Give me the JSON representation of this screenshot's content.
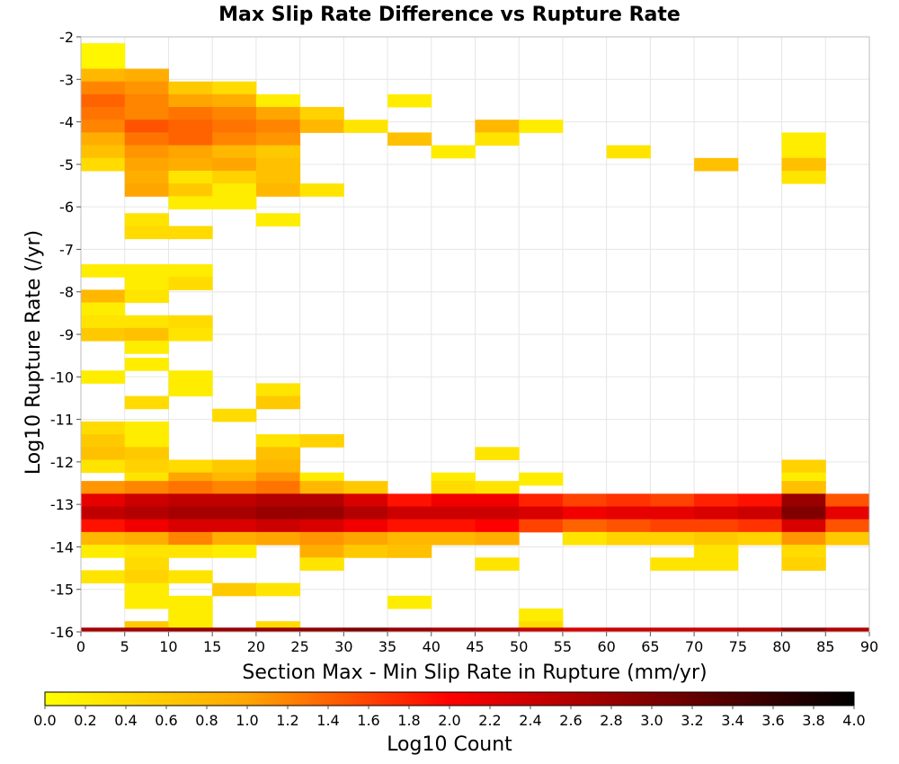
{
  "chart_data": {
    "type": "heatmap",
    "title": "Max Slip Rate Difference vs Rupture Rate",
    "xlabel": "Section Max - Min Slip Rate in Rupture (mm/yr)",
    "ylabel": "Log10 Rupture Rate (/yr)",
    "xlim": [
      0,
      90
    ],
    "ylim": [
      -16,
      -2
    ],
    "x_ticks": [
      0,
      5,
      10,
      15,
      20,
      25,
      30,
      35,
      40,
      45,
      50,
      55,
      60,
      65,
      70,
      75,
      80,
      85,
      90
    ],
    "y_ticks": [
      -2,
      -3,
      -4,
      -5,
      -6,
      -7,
      -8,
      -9,
      -10,
      -11,
      -12,
      -13,
      -14,
      -15,
      -16
    ],
    "grid": true,
    "colorbar": {
      "label": "Log10 Count",
      "range": [
        0.0,
        4.0
      ],
      "ticks": [
        "0.0",
        "0.2",
        "0.4",
        "0.6",
        "0.8",
        "1.0",
        "1.2",
        "1.4",
        "1.6",
        "1.8",
        "2.0",
        "2.2",
        "2.4",
        "2.6",
        "2.8",
        "3.0",
        "3.2",
        "3.4",
        "3.6",
        "3.8",
        "4.0"
      ],
      "placement": "bottom",
      "colors": [
        "#ffff00",
        "#ffa500",
        "#ff0000",
        "#800000",
        "#000000"
      ]
    },
    "x_bin_width": 5,
    "y_bin_height": 0.3,
    "cells": [
      {
        "x": 2.5,
        "y": -2.3,
        "v": 0.1
      },
      {
        "x": 2.5,
        "y": -2.6,
        "v": 0.1
      },
      {
        "x": 2.5,
        "y": -2.9,
        "v": 0.8
      },
      {
        "x": 7.5,
        "y": -2.9,
        "v": 0.9
      },
      {
        "x": 2.5,
        "y": -3.2,
        "v": 1.2
      },
      {
        "x": 7.5,
        "y": -3.2,
        "v": 1.1
      },
      {
        "x": 12.5,
        "y": -3.2,
        "v": 0.6
      },
      {
        "x": 17.5,
        "y": -3.2,
        "v": 0.4
      },
      {
        "x": 2.5,
        "y": -3.5,
        "v": 1.4
      },
      {
        "x": 7.5,
        "y": -3.5,
        "v": 1.2
      },
      {
        "x": 12.5,
        "y": -3.5,
        "v": 1.0
      },
      {
        "x": 17.5,
        "y": -3.5,
        "v": 0.9
      },
      {
        "x": 22.5,
        "y": -3.5,
        "v": 0.2
      },
      {
        "x": 37.5,
        "y": -3.5,
        "v": 0.2
      },
      {
        "x": 2.5,
        "y": -3.8,
        "v": 1.3
      },
      {
        "x": 7.5,
        "y": -3.8,
        "v": 1.2
      },
      {
        "x": 12.5,
        "y": -3.8,
        "v": 1.3
      },
      {
        "x": 17.5,
        "y": -3.8,
        "v": 1.2
      },
      {
        "x": 22.5,
        "y": -3.8,
        "v": 1.0
      },
      {
        "x": 27.5,
        "y": -3.8,
        "v": 0.5
      },
      {
        "x": 2.5,
        "y": -4.1,
        "v": 1.2
      },
      {
        "x": 7.5,
        "y": -4.1,
        "v": 1.5
      },
      {
        "x": 12.5,
        "y": -4.1,
        "v": 1.4
      },
      {
        "x": 17.5,
        "y": -4.1,
        "v": 1.3
      },
      {
        "x": 22.5,
        "y": -4.1,
        "v": 1.2
      },
      {
        "x": 27.5,
        "y": -4.1,
        "v": 0.8
      },
      {
        "x": 32.5,
        "y": -4.1,
        "v": 0.3
      },
      {
        "x": 47.5,
        "y": -4.1,
        "v": 0.8
      },
      {
        "x": 52.5,
        "y": -4.1,
        "v": 0.2
      },
      {
        "x": 2.5,
        "y": -4.4,
        "v": 0.9
      },
      {
        "x": 7.5,
        "y": -4.4,
        "v": 1.3
      },
      {
        "x": 12.5,
        "y": -4.4,
        "v": 1.4
      },
      {
        "x": 17.5,
        "y": -4.4,
        "v": 1.2
      },
      {
        "x": 22.5,
        "y": -4.4,
        "v": 1.1
      },
      {
        "x": 37.5,
        "y": -4.4,
        "v": 0.7
      },
      {
        "x": 47.5,
        "y": -4.4,
        "v": 0.3
      },
      {
        "x": 82.5,
        "y": -4.4,
        "v": 0.2
      },
      {
        "x": 2.5,
        "y": -4.7,
        "v": 0.7
      },
      {
        "x": 7.5,
        "y": -4.7,
        "v": 1.1
      },
      {
        "x": 12.5,
        "y": -4.7,
        "v": 1.0
      },
      {
        "x": 17.5,
        "y": -4.7,
        "v": 0.8
      },
      {
        "x": 22.5,
        "y": -4.7,
        "v": 0.6
      },
      {
        "x": 42.5,
        "y": -4.7,
        "v": 0.2
      },
      {
        "x": 62.5,
        "y": -4.7,
        "v": 0.3
      },
      {
        "x": 82.5,
        "y": -4.7,
        "v": 0.2
      },
      {
        "x": 2.5,
        "y": -5.0,
        "v": 0.4
      },
      {
        "x": 7.5,
        "y": -5.0,
        "v": 1.0
      },
      {
        "x": 12.5,
        "y": -5.0,
        "v": 0.9
      },
      {
        "x": 17.5,
        "y": -5.0,
        "v": 1.0
      },
      {
        "x": 22.5,
        "y": -5.0,
        "v": 0.7
      },
      {
        "x": 72.5,
        "y": -5.0,
        "v": 0.7
      },
      {
        "x": 82.5,
        "y": -5.0,
        "v": 0.7
      },
      {
        "x": 7.5,
        "y": -5.3,
        "v": 0.9
      },
      {
        "x": 12.5,
        "y": -5.3,
        "v": 0.3
      },
      {
        "x": 17.5,
        "y": -5.3,
        "v": 0.5
      },
      {
        "x": 22.5,
        "y": -5.3,
        "v": 0.7
      },
      {
        "x": 82.5,
        "y": -5.3,
        "v": 0.3
      },
      {
        "x": 7.5,
        "y": -5.6,
        "v": 1.0
      },
      {
        "x": 12.5,
        "y": -5.6,
        "v": 0.6
      },
      {
        "x": 17.5,
        "y": -5.6,
        "v": 0.2
      },
      {
        "x": 22.5,
        "y": -5.6,
        "v": 0.8
      },
      {
        "x": 27.5,
        "y": -5.6,
        "v": 0.3
      },
      {
        "x": 12.5,
        "y": -5.9,
        "v": 0.2
      },
      {
        "x": 17.5,
        "y": -5.9,
        "v": 0.2
      },
      {
        "x": 7.5,
        "y": -6.3,
        "v": 0.3
      },
      {
        "x": 22.5,
        "y": -6.3,
        "v": 0.2
      },
      {
        "x": 7.5,
        "y": -6.6,
        "v": 0.4
      },
      {
        "x": 12.5,
        "y": -6.6,
        "v": 0.4
      },
      {
        "x": 2.5,
        "y": -7.5,
        "v": 0.2
      },
      {
        "x": 7.5,
        "y": -7.5,
        "v": 0.2
      },
      {
        "x": 12.5,
        "y": -7.5,
        "v": 0.2
      },
      {
        "x": 7.5,
        "y": -7.8,
        "v": 0.2
      },
      {
        "x": 12.5,
        "y": -7.8,
        "v": 0.4
      },
      {
        "x": 2.5,
        "y": -8.1,
        "v": 0.8
      },
      {
        "x": 7.5,
        "y": -8.1,
        "v": 0.3
      },
      {
        "x": 2.5,
        "y": -8.4,
        "v": 0.2
      },
      {
        "x": 2.5,
        "y": -8.7,
        "v": 0.3
      },
      {
        "x": 7.5,
        "y": -8.7,
        "v": 0.3
      },
      {
        "x": 12.5,
        "y": -8.7,
        "v": 0.4
      },
      {
        "x": 2.5,
        "y": -9.0,
        "v": 0.6
      },
      {
        "x": 7.5,
        "y": -9.0,
        "v": 0.7
      },
      {
        "x": 12.5,
        "y": -9.0,
        "v": 0.3
      },
      {
        "x": 7.5,
        "y": -9.3,
        "v": 0.2
      },
      {
        "x": 7.5,
        "y": -9.7,
        "v": 0.2
      },
      {
        "x": 2.5,
        "y": -10.0,
        "v": 0.2
      },
      {
        "x": 12.5,
        "y": -10.0,
        "v": 0.2
      },
      {
        "x": 12.5,
        "y": -10.3,
        "v": 0.2
      },
      {
        "x": 22.5,
        "y": -10.3,
        "v": 0.3
      },
      {
        "x": 7.5,
        "y": -10.6,
        "v": 0.4
      },
      {
        "x": 22.5,
        "y": -10.6,
        "v": 0.6
      },
      {
        "x": 17.5,
        "y": -10.9,
        "v": 0.4
      },
      {
        "x": 2.5,
        "y": -11.2,
        "v": 0.4
      },
      {
        "x": 7.5,
        "y": -11.2,
        "v": 0.2
      },
      {
        "x": 2.5,
        "y": -11.5,
        "v": 0.6
      },
      {
        "x": 7.5,
        "y": -11.5,
        "v": 0.2
      },
      {
        "x": 22.5,
        "y": -11.5,
        "v": 0.3
      },
      {
        "x": 27.5,
        "y": -11.5,
        "v": 0.5
      },
      {
        "x": 2.5,
        "y": -11.8,
        "v": 0.7
      },
      {
        "x": 7.5,
        "y": -11.8,
        "v": 0.6
      },
      {
        "x": 22.5,
        "y": -11.8,
        "v": 0.7
      },
      {
        "x": 47.5,
        "y": -11.8,
        "v": 0.3
      },
      {
        "x": 2.5,
        "y": -12.1,
        "v": 0.3
      },
      {
        "x": 7.5,
        "y": -12.1,
        "v": 0.5
      },
      {
        "x": 12.5,
        "y": -12.1,
        "v": 0.4
      },
      {
        "x": 17.5,
        "y": -12.1,
        "v": 0.6
      },
      {
        "x": 22.5,
        "y": -12.1,
        "v": 0.8
      },
      {
        "x": 82.5,
        "y": -12.1,
        "v": 0.5
      },
      {
        "x": 7.5,
        "y": -12.4,
        "v": 0.3
      },
      {
        "x": 12.5,
        "y": -12.4,
        "v": 1.0
      },
      {
        "x": 17.5,
        "y": -12.4,
        "v": 0.8
      },
      {
        "x": 22.5,
        "y": -12.4,
        "v": 1.1
      },
      {
        "x": 27.5,
        "y": -12.4,
        "v": 0.2
      },
      {
        "x": 42.5,
        "y": -12.4,
        "v": 0.2
      },
      {
        "x": 52.5,
        "y": -12.4,
        "v": 0.2
      },
      {
        "x": 82.5,
        "y": -12.4,
        "v": 0.2
      },
      {
        "x": 2.5,
        "y": -12.6,
        "v": 1.1
      },
      {
        "x": 7.5,
        "y": -12.6,
        "v": 1.2
      },
      {
        "x": 12.5,
        "y": -12.6,
        "v": 1.3
      },
      {
        "x": 17.5,
        "y": -12.6,
        "v": 1.2
      },
      {
        "x": 22.5,
        "y": -12.6,
        "v": 1.3
      },
      {
        "x": 27.5,
        "y": -12.6,
        "v": 0.8
      },
      {
        "x": 32.5,
        "y": -12.6,
        "v": 0.6
      },
      {
        "x": 42.5,
        "y": -12.6,
        "v": 0.4
      },
      {
        "x": 47.5,
        "y": -12.6,
        "v": 0.3
      },
      {
        "x": 82.5,
        "y": -12.6,
        "v": 0.7
      },
      {
        "x": 2.5,
        "y": -12.9,
        "v": 2.2
      },
      {
        "x": 7.5,
        "y": -12.9,
        "v": 2.4
      },
      {
        "x": 12.5,
        "y": -12.9,
        "v": 2.5
      },
      {
        "x": 17.5,
        "y": -12.9,
        "v": 2.5
      },
      {
        "x": 22.5,
        "y": -12.9,
        "v": 2.6
      },
      {
        "x": 27.5,
        "y": -12.9,
        "v": 2.6
      },
      {
        "x": 32.5,
        "y": -12.9,
        "v": 2.3
      },
      {
        "x": 37.5,
        "y": -12.9,
        "v": 1.9
      },
      {
        "x": 42.5,
        "y": -12.9,
        "v": 2.1
      },
      {
        "x": 47.5,
        "y": -12.9,
        "v": 2.1
      },
      {
        "x": 52.5,
        "y": -12.9,
        "v": 1.8
      },
      {
        "x": 57.5,
        "y": -12.9,
        "v": 1.6
      },
      {
        "x": 62.5,
        "y": -12.9,
        "v": 1.7
      },
      {
        "x": 67.5,
        "y": -12.9,
        "v": 1.6
      },
      {
        "x": 72.5,
        "y": -12.9,
        "v": 1.8
      },
      {
        "x": 77.5,
        "y": -12.9,
        "v": 1.9
      },
      {
        "x": 82.5,
        "y": -12.9,
        "v": 2.8
      },
      {
        "x": 87.5,
        "y": -12.9,
        "v": 1.5
      },
      {
        "x": 2.5,
        "y": -13.2,
        "v": 2.5
      },
      {
        "x": 7.5,
        "y": -13.2,
        "v": 2.6
      },
      {
        "x": 12.5,
        "y": -13.2,
        "v": 2.7
      },
      {
        "x": 17.5,
        "y": -13.2,
        "v": 2.7
      },
      {
        "x": 22.5,
        "y": -13.2,
        "v": 2.8
      },
      {
        "x": 27.5,
        "y": -13.2,
        "v": 2.8
      },
      {
        "x": 32.5,
        "y": -13.2,
        "v": 2.6
      },
      {
        "x": 37.5,
        "y": -13.2,
        "v": 2.4
      },
      {
        "x": 42.5,
        "y": -13.2,
        "v": 2.4
      },
      {
        "x": 47.5,
        "y": -13.2,
        "v": 2.4
      },
      {
        "x": 52.5,
        "y": -13.2,
        "v": 2.3
      },
      {
        "x": 57.5,
        "y": -13.2,
        "v": 2.1
      },
      {
        "x": 62.5,
        "y": -13.2,
        "v": 2.2
      },
      {
        "x": 67.5,
        "y": -13.2,
        "v": 2.2
      },
      {
        "x": 72.5,
        "y": -13.2,
        "v": 2.3
      },
      {
        "x": 77.5,
        "y": -13.2,
        "v": 2.4
      },
      {
        "x": 82.5,
        "y": -13.2,
        "v": 3.0
      },
      {
        "x": 87.5,
        "y": -13.2,
        "v": 2.2
      },
      {
        "x": 2.5,
        "y": -13.5,
        "v": 1.9
      },
      {
        "x": 7.5,
        "y": -13.5,
        "v": 2.1
      },
      {
        "x": 12.5,
        "y": -13.5,
        "v": 2.3
      },
      {
        "x": 17.5,
        "y": -13.5,
        "v": 2.3
      },
      {
        "x": 22.5,
        "y": -13.5,
        "v": 2.4
      },
      {
        "x": 27.5,
        "y": -13.5,
        "v": 2.3
      },
      {
        "x": 32.5,
        "y": -13.5,
        "v": 2.1
      },
      {
        "x": 37.5,
        "y": -13.5,
        "v": 1.9
      },
      {
        "x": 42.5,
        "y": -13.5,
        "v": 1.9
      },
      {
        "x": 47.5,
        "y": -13.5,
        "v": 2.0
      },
      {
        "x": 52.5,
        "y": -13.5,
        "v": 1.6
      },
      {
        "x": 57.5,
        "y": -13.5,
        "v": 1.4
      },
      {
        "x": 62.5,
        "y": -13.5,
        "v": 1.5
      },
      {
        "x": 67.5,
        "y": -13.5,
        "v": 1.6
      },
      {
        "x": 72.5,
        "y": -13.5,
        "v": 1.6
      },
      {
        "x": 77.5,
        "y": -13.5,
        "v": 1.7
      },
      {
        "x": 82.5,
        "y": -13.5,
        "v": 2.3
      },
      {
        "x": 87.5,
        "y": -13.5,
        "v": 1.5
      },
      {
        "x": 2.5,
        "y": -13.8,
        "v": 0.8
      },
      {
        "x": 7.5,
        "y": -13.8,
        "v": 0.9
      },
      {
        "x": 12.5,
        "y": -13.8,
        "v": 1.2
      },
      {
        "x": 17.5,
        "y": -13.8,
        "v": 0.9
      },
      {
        "x": 22.5,
        "y": -13.8,
        "v": 1.0
      },
      {
        "x": 27.5,
        "y": -13.8,
        "v": 1.1
      },
      {
        "x": 32.5,
        "y": -13.8,
        "v": 1.0
      },
      {
        "x": 37.5,
        "y": -13.8,
        "v": 0.8
      },
      {
        "x": 42.5,
        "y": -13.8,
        "v": 0.8
      },
      {
        "x": 47.5,
        "y": -13.8,
        "v": 0.9
      },
      {
        "x": 57.5,
        "y": -13.8,
        "v": 0.3
      },
      {
        "x": 62.5,
        "y": -13.8,
        "v": 0.5
      },
      {
        "x": 67.5,
        "y": -13.8,
        "v": 0.5
      },
      {
        "x": 72.5,
        "y": -13.8,
        "v": 0.6
      },
      {
        "x": 77.5,
        "y": -13.8,
        "v": 0.5
      },
      {
        "x": 82.5,
        "y": -13.8,
        "v": 1.1
      },
      {
        "x": 87.5,
        "y": -13.8,
        "v": 0.6
      },
      {
        "x": 2.5,
        "y": -14.1,
        "v": 0.2
      },
      {
        "x": 7.5,
        "y": -14.1,
        "v": 0.3
      },
      {
        "x": 12.5,
        "y": -14.1,
        "v": 0.3
      },
      {
        "x": 17.5,
        "y": -14.1,
        "v": 0.2
      },
      {
        "x": 27.5,
        "y": -14.1,
        "v": 0.9
      },
      {
        "x": 32.5,
        "y": -14.1,
        "v": 0.6
      },
      {
        "x": 37.5,
        "y": -14.1,
        "v": 0.7
      },
      {
        "x": 72.5,
        "y": -14.1,
        "v": 0.3
      },
      {
        "x": 82.5,
        "y": -14.1,
        "v": 0.4
      },
      {
        "x": 7.5,
        "y": -14.4,
        "v": 0.4
      },
      {
        "x": 27.5,
        "y": -14.4,
        "v": 0.3
      },
      {
        "x": 47.5,
        "y": -14.4,
        "v": 0.3
      },
      {
        "x": 67.5,
        "y": -14.4,
        "v": 0.3
      },
      {
        "x": 72.5,
        "y": -14.4,
        "v": 0.3
      },
      {
        "x": 82.5,
        "y": -14.4,
        "v": 0.5
      },
      {
        "x": 2.5,
        "y": -14.7,
        "v": 0.3
      },
      {
        "x": 7.5,
        "y": -14.7,
        "v": 0.5
      },
      {
        "x": 12.5,
        "y": -14.7,
        "v": 0.3
      },
      {
        "x": 7.5,
        "y": -15.0,
        "v": 0.2
      },
      {
        "x": 17.5,
        "y": -15.0,
        "v": 0.6
      },
      {
        "x": 22.5,
        "y": -15.0,
        "v": 0.3
      },
      {
        "x": 7.5,
        "y": -15.3,
        "v": 0.2
      },
      {
        "x": 12.5,
        "y": -15.3,
        "v": 0.2
      },
      {
        "x": 37.5,
        "y": -15.3,
        "v": 0.2
      },
      {
        "x": 12.5,
        "y": -15.6,
        "v": 0.2
      },
      {
        "x": 52.5,
        "y": -15.6,
        "v": 0.2
      },
      {
        "x": 7.5,
        "y": -15.9,
        "v": 0.6
      },
      {
        "x": 12.5,
        "y": -15.9,
        "v": 0.2
      },
      {
        "x": 22.5,
        "y": -15.9,
        "v": 0.4
      },
      {
        "x": 52.5,
        "y": -15.9,
        "v": 0.4
      },
      {
        "x": 2.5,
        "y": -16.05,
        "v": 2.7
      },
      {
        "x": 7.5,
        "y": -16.05,
        "v": 2.7
      },
      {
        "x": 12.5,
        "y": -16.05,
        "v": 2.8
      },
      {
        "x": 17.5,
        "y": -16.05,
        "v": 2.8
      },
      {
        "x": 22.5,
        "y": -16.05,
        "v": 2.8
      },
      {
        "x": 27.5,
        "y": -16.05,
        "v": 2.9
      },
      {
        "x": 32.5,
        "y": -16.05,
        "v": 3.0
      },
      {
        "x": 37.5,
        "y": -16.05,
        "v": 2.8
      },
      {
        "x": 42.5,
        "y": -16.05,
        "v": 2.7
      },
      {
        "x": 47.5,
        "y": -16.05,
        "v": 2.6
      },
      {
        "x": 52.5,
        "y": -16.05,
        "v": 2.4
      },
      {
        "x": 57.5,
        "y": -16.05,
        "v": 2.3
      },
      {
        "x": 62.5,
        "y": -16.05,
        "v": 2.4
      },
      {
        "x": 67.5,
        "y": -16.05,
        "v": 2.4
      },
      {
        "x": 72.5,
        "y": -16.05,
        "v": 2.4
      },
      {
        "x": 77.5,
        "y": -16.05,
        "v": 2.5
      },
      {
        "x": 82.5,
        "y": -16.05,
        "v": 2.9
      },
      {
        "x": 87.5,
        "y": -16.05,
        "v": 2.6
      }
    ]
  }
}
